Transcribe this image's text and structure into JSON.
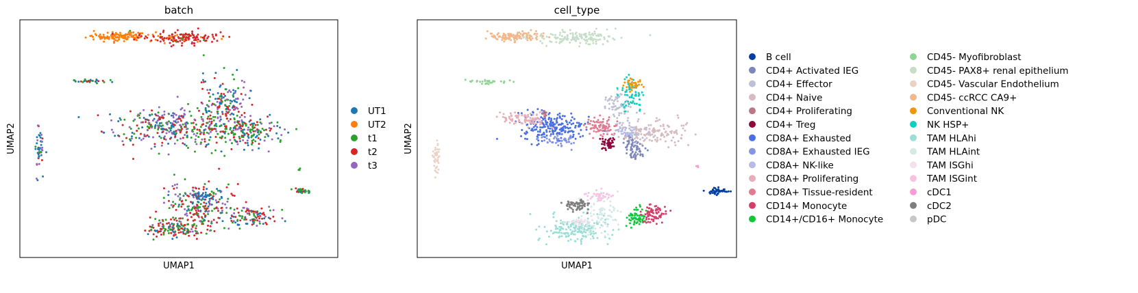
{
  "chart_data": [
    {
      "type": "scatter",
      "title": "batch",
      "xlabel": "UMAP1",
      "ylabel": "UMAP2",
      "xlim": [
        0,
        100
      ],
      "ylim": [
        0,
        100
      ],
      "grid": false,
      "legend_position": "right",
      "series": [
        {
          "name": "UT1",
          "color": "#1f77b4"
        },
        {
          "name": "UT2",
          "color": "#ff7f0e"
        },
        {
          "name": "t1",
          "color": "#2ca02c"
        },
        {
          "name": "t2",
          "color": "#d62728"
        },
        {
          "name": "t3",
          "color": "#9467bd"
        }
      ],
      "clusters": [
        {
          "x": 31,
          "y": 93,
          "sx": 5,
          "sy": 0.9,
          "n": 120,
          "mix": [
            0,
            1,
            0,
            0,
            0
          ]
        },
        {
          "x": 50,
          "y": 92.5,
          "sx": 6,
          "sy": 1.4,
          "n": 140,
          "mix": [
            0,
            0.1,
            0.05,
            0.8,
            0.05
          ]
        },
        {
          "x": 22,
          "y": 74,
          "sx": 4,
          "sy": 0.5,
          "n": 30,
          "mix": [
            0.4,
            0,
            0.3,
            0.3,
            0
          ]
        },
        {
          "x": 6,
          "y": 46,
          "sx": 0.7,
          "sy": 4.5,
          "n": 45,
          "mix": [
            0.4,
            0,
            0.1,
            0.2,
            0.3
          ]
        },
        {
          "x": 47,
          "y": 55,
          "sx": 10,
          "sy": 4,
          "n": 330,
          "mix": [
            0.2,
            0,
            0.25,
            0.25,
            0.3
          ]
        },
        {
          "x": 64,
          "y": 64,
          "sx": 4,
          "sy": 6,
          "n": 170,
          "mix": [
            0.25,
            0,
            0.25,
            0.25,
            0.25
          ]
        },
        {
          "x": 72,
          "y": 53,
          "sx": 6,
          "sy": 3.5,
          "n": 180,
          "mix": [
            0.2,
            0,
            0.35,
            0.25,
            0.2
          ]
        },
        {
          "x": 56,
          "y": 22,
          "sx": 5,
          "sy": 4.5,
          "n": 220,
          "mix": [
            0.15,
            0,
            0.3,
            0.35,
            0.2
          ]
        },
        {
          "x": 50,
          "y": 12,
          "sx": 5,
          "sy": 2.2,
          "n": 140,
          "mix": [
            0.1,
            0,
            0.3,
            0.5,
            0.1
          ]
        },
        {
          "x": 73,
          "y": 17,
          "sx": 4,
          "sy": 2.5,
          "n": 100,
          "mix": [
            0.3,
            0,
            0.2,
            0.3,
            0.2
          ]
        },
        {
          "x": 58,
          "y": 26,
          "sx": 2,
          "sy": 1.2,
          "n": 30,
          "mix": [
            1,
            0,
            0,
            0,
            0
          ]
        },
        {
          "x": 88.5,
          "y": 28,
          "sx": 1.6,
          "sy": 0.6,
          "n": 35,
          "mix": [
            0.2,
            0,
            0.6,
            0.1,
            0.1
          ]
        },
        {
          "x": 88,
          "y": 37,
          "sx": 0.2,
          "sy": 0.3,
          "n": 3,
          "mix": [
            0,
            0,
            1,
            0,
            0
          ]
        }
      ]
    },
    {
      "type": "scatter",
      "title": "cell_type",
      "xlabel": "UMAP1",
      "ylabel": "UMAP2",
      "xlim": [
        0,
        100
      ],
      "ylim": [
        0,
        100
      ],
      "grid": false,
      "legend_position": "right",
      "legend_columns": 2,
      "series": [
        {
          "name": "B cell",
          "color": "#023fa5"
        },
        {
          "name": "CD4+ Activated IEG",
          "color": "#7d87b9"
        },
        {
          "name": "CD4+ Effector",
          "color": "#bec1d4"
        },
        {
          "name": "CD4+ Naive",
          "color": "#d6bcc0"
        },
        {
          "name": "CD4+ Proliferating",
          "color": "#bb7784"
        },
        {
          "name": "CD4+ Treg",
          "color": "#8e063b"
        },
        {
          "name": "CD8A+ Exhausted",
          "color": "#4a6fe3"
        },
        {
          "name": "CD8A+ Exhausted IEG",
          "color": "#8595e1"
        },
        {
          "name": "CD8A+ NK-like",
          "color": "#b5bbe3"
        },
        {
          "name": "CD8A+ Proliferating",
          "color": "#e6afb9"
        },
        {
          "name": "CD8A+ Tissue-resident",
          "color": "#e07b91"
        },
        {
          "name": "CD14+ Monocyte",
          "color": "#d33f6a"
        },
        {
          "name": "CD14+/CD16+ Monocyte",
          "color": "#11c638"
        },
        {
          "name": "CD45- Myofibroblast",
          "color": "#8dd593"
        },
        {
          "name": "CD45- PAX8+ renal epithelium",
          "color": "#c6dec7"
        },
        {
          "name": "CD45- Vascular Endothelium",
          "color": "#ead3c6"
        },
        {
          "name": "CD45- ccRCC CA9+",
          "color": "#f0b98d"
        },
        {
          "name": "Conventional NK",
          "color": "#ef9708"
        },
        {
          "name": "NK HSP+",
          "color": "#0fcfc0"
        },
        {
          "name": "TAM HLAhi",
          "color": "#9cded6"
        },
        {
          "name": "TAM HLAint",
          "color": "#d5eae7"
        },
        {
          "name": "TAM ISGhi",
          "color": "#f3e1eb"
        },
        {
          "name": "TAM ISGint",
          "color": "#f6c4e1"
        },
        {
          "name": "cDC1",
          "color": "#f79cd4"
        },
        {
          "name": "cDC2",
          "color": "#7f7f7f"
        },
        {
          "name": "pDC",
          "color": "#c7c7c7"
        }
      ],
      "clusters": [
        {
          "x": 31,
          "y": 93,
          "sx": 4.5,
          "sy": 0.9,
          "n": 120,
          "cat": 16
        },
        {
          "x": 50,
          "y": 92.5,
          "sx": 6,
          "sy": 1.3,
          "n": 140,
          "cat": 14
        },
        {
          "x": 22,
          "y": 74,
          "sx": 4,
          "sy": 0.5,
          "n": 30,
          "cat": 13
        },
        {
          "x": 6,
          "y": 41,
          "sx": 0.6,
          "sy": 4,
          "n": 40,
          "cat": 15
        },
        {
          "x": 42,
          "y": 55,
          "sx": 5,
          "sy": 3,
          "n": 220,
          "cat": 6
        },
        {
          "x": 45,
          "y": 49,
          "sx": 3,
          "sy": 1.2,
          "n": 40,
          "cat": 7
        },
        {
          "x": 36,
          "y": 58,
          "sx": 2,
          "sy": 1.5,
          "n": 50,
          "cat": 9
        },
        {
          "x": 30,
          "y": 59,
          "sx": 2.5,
          "sy": 1.2,
          "n": 35,
          "cat": 9
        },
        {
          "x": 58,
          "y": 55,
          "sx": 2.5,
          "sy": 2,
          "n": 80,
          "cat": 10
        },
        {
          "x": 60,
          "y": 48,
          "sx": 1.2,
          "sy": 1.3,
          "n": 50,
          "cat": 5
        },
        {
          "x": 68,
          "y": 46,
          "sx": 1.5,
          "sy": 2.5,
          "n": 70,
          "cat": 1
        },
        {
          "x": 66,
          "y": 53,
          "sx": 3,
          "sy": 2,
          "n": 70,
          "cat": 8
        },
        {
          "x": 63,
          "y": 65,
          "sx": 2,
          "sy": 3,
          "n": 60,
          "cat": 2
        },
        {
          "x": 75,
          "y": 53,
          "sx": 5,
          "sy": 2.5,
          "n": 120,
          "cat": 3
        },
        {
          "x": 67,
          "y": 68,
          "sx": 2,
          "sy": 3.5,
          "n": 60,
          "cat": 18
        },
        {
          "x": 67.5,
          "y": 72.5,
          "sx": 1.5,
          "sy": 1.2,
          "n": 40,
          "cat": 17
        },
        {
          "x": 40,
          "y": 60,
          "sx": 0.4,
          "sy": 0.6,
          "n": 8,
          "cat": 4
        },
        {
          "x": 94,
          "y": 28,
          "sx": 1.5,
          "sy": 0.6,
          "n": 45,
          "cat": 0
        },
        {
          "x": 88,
          "y": 38,
          "sx": 0.3,
          "sy": 0.3,
          "n": 3,
          "cat": 23
        },
        {
          "x": 49,
          "y": 12,
          "sx": 5,
          "sy": 2.5,
          "n": 180,
          "cat": 19
        },
        {
          "x": 57,
          "y": 18,
          "sx": 3,
          "sy": 4,
          "n": 80,
          "cat": 20
        },
        {
          "x": 50,
          "y": 15,
          "sx": 2,
          "sy": 1,
          "n": 30,
          "cat": 21
        },
        {
          "x": 50,
          "y": 22,
          "sx": 2,
          "sy": 1.3,
          "n": 70,
          "cat": 24
        },
        {
          "x": 57,
          "y": 26,
          "sx": 2,
          "sy": 1.2,
          "n": 40,
          "cat": 22
        },
        {
          "x": 69,
          "y": 17,
          "sx": 1.5,
          "sy": 1.8,
          "n": 60,
          "cat": 12
        },
        {
          "x": 74,
          "y": 18.5,
          "sx": 2,
          "sy": 2,
          "n": 70,
          "cat": 11
        }
      ]
    }
  ]
}
